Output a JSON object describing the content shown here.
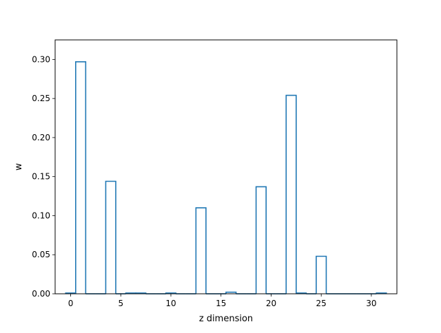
{
  "chart_data": {
    "type": "bar",
    "style": "outlined-step-bars",
    "xlabel": "z dimension",
    "ylabel": "w",
    "xlim": [
      -1.55,
      32.55
    ],
    "ylim": [
      0,
      0.325
    ],
    "xticks": [
      0,
      5,
      10,
      15,
      20,
      25,
      30
    ],
    "xtick_labels": [
      "0",
      "5",
      "10",
      "15",
      "20",
      "25",
      "30"
    ],
    "yticks": [
      0.0,
      0.05,
      0.1,
      0.15,
      0.2,
      0.25,
      0.3
    ],
    "ytick_labels": [
      "0.00",
      "0.05",
      "0.10",
      "0.15",
      "0.20",
      "0.25",
      "0.30"
    ],
    "bar_color": "#1f77b4",
    "grid": false,
    "x": [
      0,
      1,
      2,
      3,
      4,
      5,
      6,
      7,
      8,
      9,
      10,
      11,
      12,
      13,
      14,
      15,
      16,
      17,
      18,
      19,
      20,
      21,
      22,
      23,
      24,
      25,
      26,
      27,
      28,
      29,
      30,
      31
    ],
    "values": [
      0.001,
      0.297,
      0.0,
      0.0,
      0.144,
      0.0,
      0.001,
      0.001,
      0.0,
      0.0,
      0.001,
      0.0,
      0.0,
      0.11,
      0.0,
      0.0,
      0.002,
      0.0,
      0.0,
      0.137,
      0.0,
      0.0,
      0.254,
      0.001,
      0.0,
      0.048,
      0.0,
      0.0,
      0.0,
      0.0,
      0.0,
      0.001
    ]
  }
}
